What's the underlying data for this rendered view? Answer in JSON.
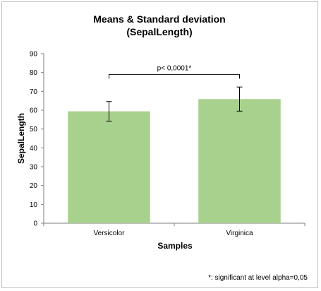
{
  "chart_data": {
    "type": "bar",
    "title_lines": [
      "Means & Standard deviation",
      "(SepalLength)"
    ],
    "xlabel": "Samples",
    "ylabel": "SepalLength",
    "categories": [
      "Versicolor",
      "Virginica"
    ],
    "values": [
      59.4,
      65.9
    ],
    "error_bars": [
      5.2,
      6.4
    ],
    "ylim": [
      0,
      90
    ],
    "yticks": [
      0,
      10,
      20,
      30,
      40,
      50,
      60,
      70,
      80,
      90
    ],
    "bar_color": "#a9d18e",
    "grid": false,
    "significance": {
      "between": [
        0,
        1
      ],
      "label": "p< 0,0001*",
      "level": 79
    },
    "footnote": "*: significant at level alpha=0,05"
  }
}
